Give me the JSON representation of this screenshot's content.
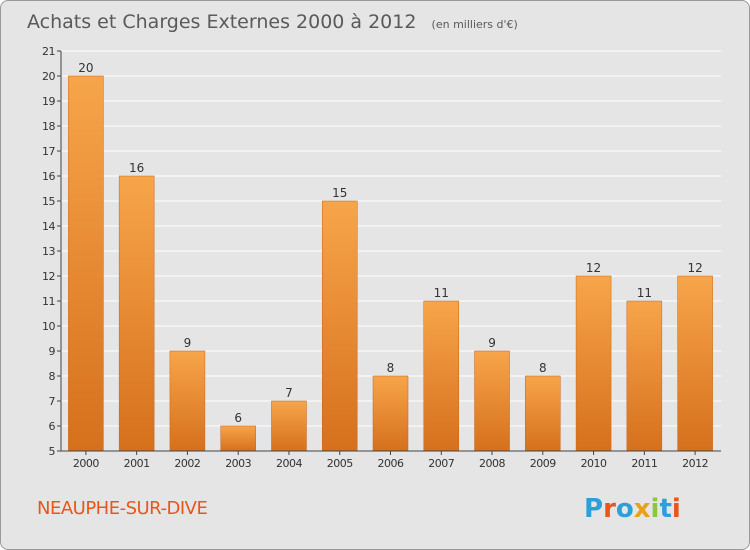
{
  "header": {
    "title": "Achats et Charges Externes 2000 à 2012",
    "unit": "(en milliers d'€)"
  },
  "footer": {
    "commune": "NEAUPHE-SUR-DIVE",
    "logo_text": "Proxiti",
    "logo_colors": [
      "#2d9fd9",
      "#e8561a",
      "#2d9fd9",
      "#e8a21a",
      "#8cc63f",
      "#2d9fd9",
      "#e8561a"
    ]
  },
  "colors": {
    "bar_light": "#f7a54a",
    "bar_dark": "#d6701c",
    "grid": "#ffffff",
    "axis": "#444444"
  },
  "chart_data": {
    "type": "bar",
    "title": "Achats et Charges Externes 2000 à 2012",
    "subtitle": "(en milliers d'€)",
    "xlabel": "",
    "ylabel": "",
    "categories": [
      "2000",
      "2001",
      "2002",
      "2003",
      "2004",
      "2005",
      "2006",
      "2007",
      "2008",
      "2009",
      "2010",
      "2011",
      "2012"
    ],
    "values": [
      20,
      16,
      9,
      6,
      7,
      15,
      8,
      11,
      9,
      8,
      12,
      11,
      12
    ],
    "ylim": [
      5,
      21
    ],
    "yticks": [
      5,
      6,
      7,
      8,
      9,
      10,
      11,
      12,
      13,
      14,
      15,
      16,
      17,
      18,
      19,
      20,
      21
    ],
    "grid": true,
    "legend": "none"
  }
}
